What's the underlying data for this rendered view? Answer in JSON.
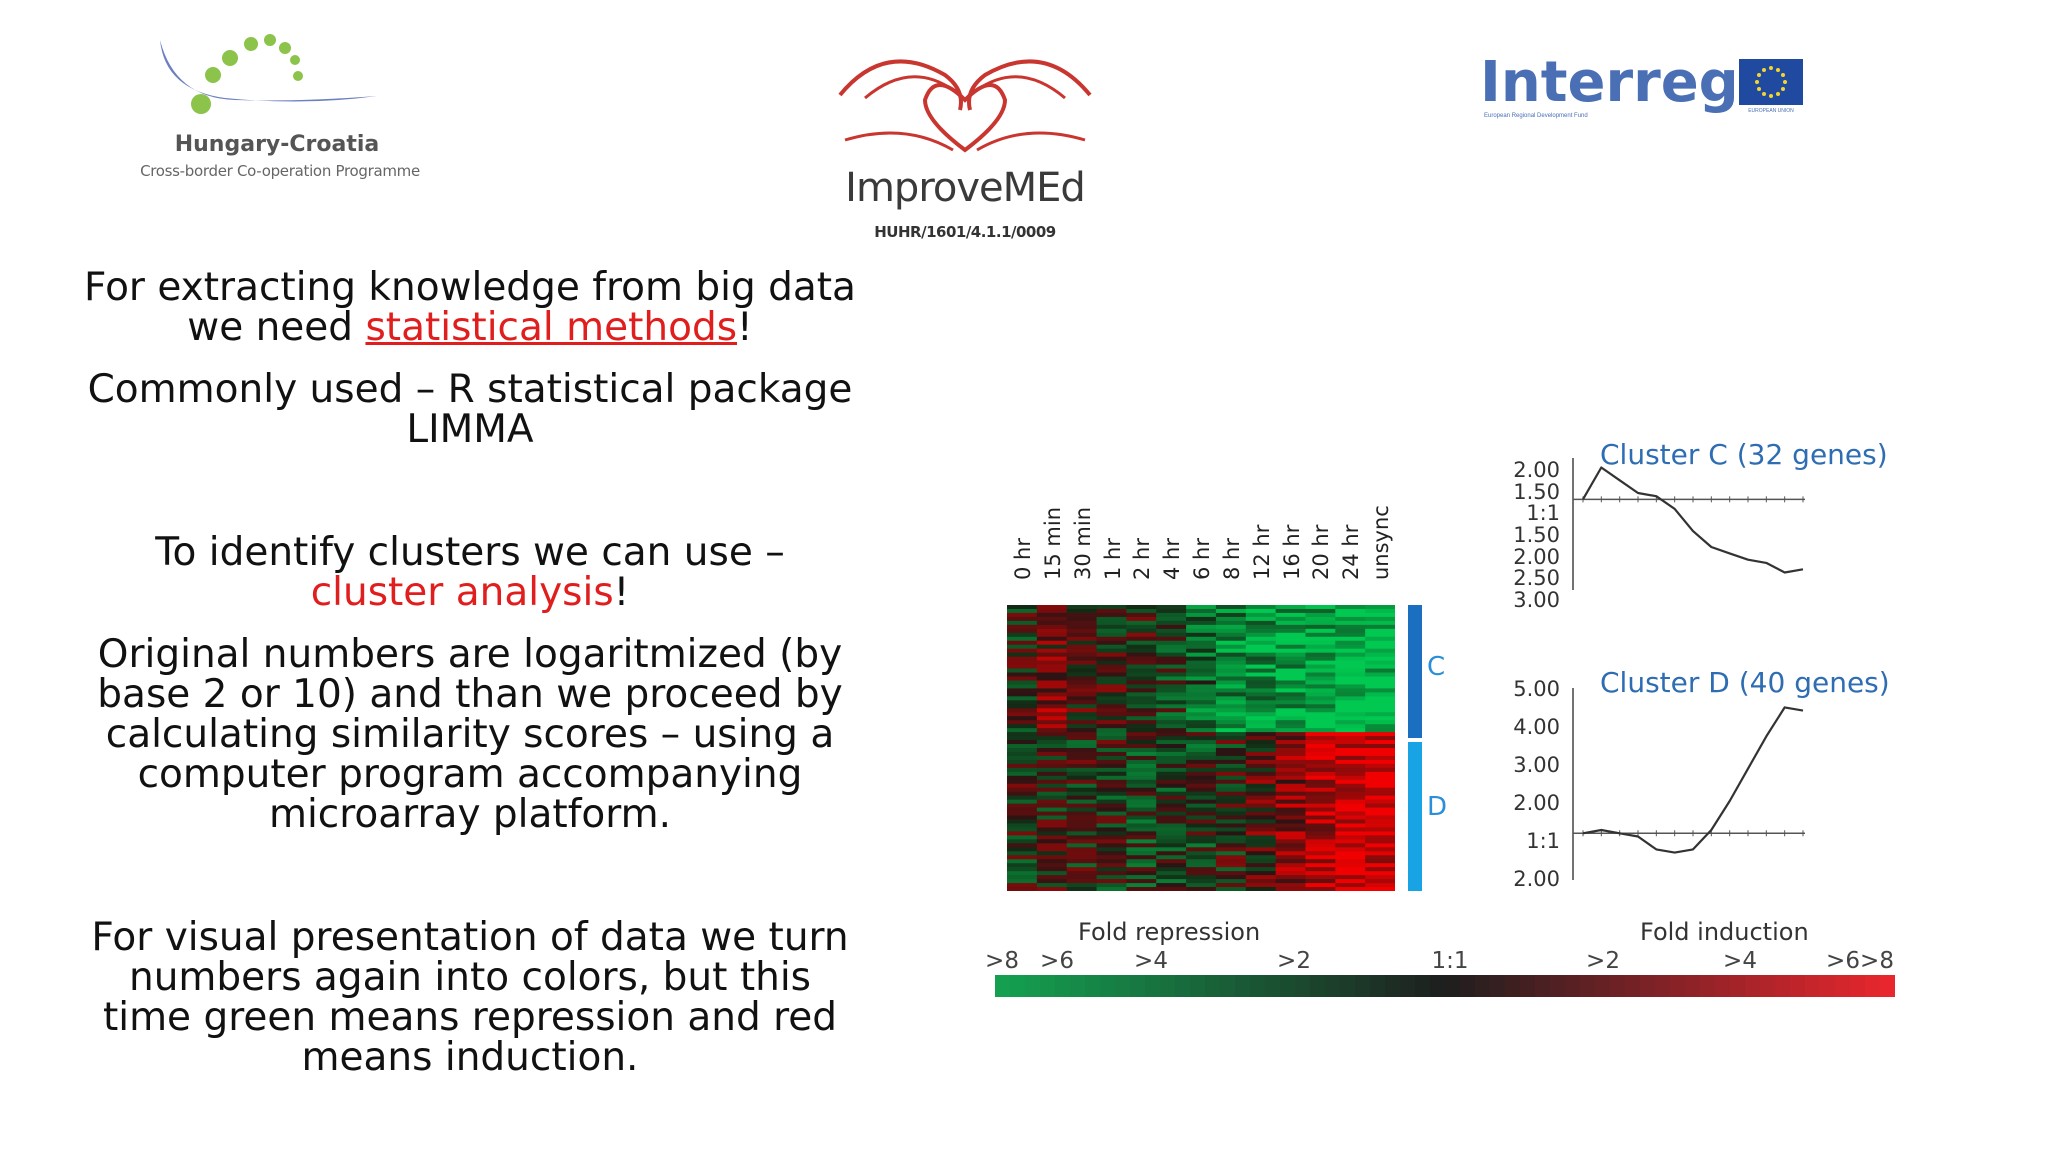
{
  "logos": {
    "hungary_croatia": {
      "title": "Hungary-Croatia",
      "subtitle": "Cross-border Co-operation Programme"
    },
    "improvemed": {
      "title": "ImproveMEd",
      "code": "HUHR/1601/4.1.1/0009"
    },
    "interreg": {
      "title": "Interreg",
      "subtitle": "European Regional Development Fund",
      "flag_caption": "EUROPEAN UNION"
    }
  },
  "text": {
    "p1_line1": "For extracting knowledge from big data",
    "p1_line2_pre": "we need ",
    "p1_link": "statistical methods",
    "p1_line2_post": "!",
    "p2_line1": "Commonly used – R statistical package",
    "p2_line2": "LIMMA",
    "p3_line1": "To identify clusters we can use  –",
    "p3_red": "cluster analysis",
    "p3_post": "!",
    "p4_lines": [
      "Original numbers are logaritmized (by",
      "base 2 or 10) and than we proceed by",
      "calculating similarity scores – using a",
      "computer program accompanying",
      "microarray platform."
    ],
    "p5_lines": [
      "For visual presentation of data we turn",
      "numbers again into colors, but this",
      "time green means repression and red",
      "means induction."
    ]
  },
  "colors": {
    "red": "#e01e1e",
    "cluster_blue": "#2f6db3",
    "bar_c": "#1a6fc0",
    "bar_d": "#17a3e4",
    "green": "#1ba04f",
    "scale_red": "#e8262e"
  },
  "chart_data": {
    "type": "heatmap",
    "time_labels": [
      "0 hr",
      "15 min",
      "30 min",
      "1 hr",
      "2 hr",
      "4 hr",
      "6 hr",
      "8 hr",
      "12 hr",
      "16 hr",
      "20 hr",
      "24 hr",
      "unsync"
    ],
    "cluster_labels": [
      "C",
      "D"
    ],
    "clusters": [
      {
        "title": "Cluster C (32 genes)",
        "yticks": [
          "2.00",
          "1.50",
          "1:1",
          "1.50",
          "2.00",
          "2.50",
          "3.00"
        ],
        "profile": [
          0,
          1.0,
          0.6,
          0.2,
          0.1,
          -0.3,
          -1.0,
          -1.5,
          -1.7,
          -1.9,
          -2.0,
          -2.3,
          -2.2
        ]
      },
      {
        "title": "Cluster D (40 genes)",
        "yticks": [
          "5.00",
          "4.00",
          "3.00",
          "2.00",
          "1:1",
          "2.00"
        ],
        "profile": [
          0,
          0.1,
          0,
          -0.1,
          -0.5,
          -0.6,
          -0.5,
          0.1,
          1.0,
          2.0,
          3.0,
          3.9,
          3.8
        ]
      }
    ],
    "scale": {
      "left_title": "Fold repression",
      "right_title": "Fold induction",
      "ticks": [
        ">8",
        ">6",
        ">4",
        ">2",
        "1:1",
        ">2",
        ">4",
        ">6",
        ">8"
      ]
    }
  }
}
